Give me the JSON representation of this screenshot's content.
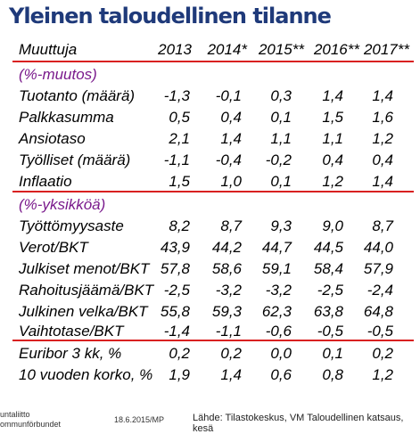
{
  "title": "Yleinen taloudellinen tilanne",
  "header": {
    "label": "Muuttuja",
    "years": [
      "2013",
      "2014*",
      "2015**",
      "2016**",
      "2017**"
    ]
  },
  "section1": {
    "label": "(%-muutos)",
    "rows": [
      {
        "label": "Tuotanto (määrä)",
        "values": [
          "-1,3",
          "-0,1",
          "0,3",
          "1,4",
          "1,4"
        ]
      },
      {
        "label": "Palkkasumma",
        "values": [
          "0,5",
          "0,4",
          "0,1",
          "1,5",
          "1,6"
        ]
      },
      {
        "label": "Ansiotaso",
        "values": [
          "2,1",
          "1,4",
          "1,1",
          "1,1",
          "1,2"
        ]
      },
      {
        "label": "Työlliset (määrä)",
        "values": [
          "-1,1",
          "-0,4",
          "-0,2",
          "0,4",
          "0,4"
        ]
      },
      {
        "label": "Inflaatio",
        "values": [
          "1,5",
          "1,0",
          "0,1",
          "1,2",
          "1,4"
        ]
      }
    ]
  },
  "section2": {
    "label": "(%-yksikköä)",
    "rows": [
      {
        "label": "Työttömyysaste",
        "values": [
          "8,2",
          "8,7",
          "9,3",
          "9,0",
          "8,7"
        ]
      },
      {
        "label": "Verot/BKT",
        "values": [
          "43,9",
          "44,2",
          "44,7",
          "44,5",
          "44,0"
        ]
      },
      {
        "label": "Julkiset menot/BKT",
        "values": [
          "57,8",
          "58,6",
          "59,1",
          "58,4",
          "57,9"
        ]
      },
      {
        "label": "Rahoitusjäämä/BKT",
        "values": [
          "-2,5",
          "-3,2",
          "-3,2",
          "-2,5",
          "-2,4"
        ]
      },
      {
        "label": "Julkinen velka/BKT",
        "values": [
          "55,8",
          "59,3",
          "62,3",
          "63,8",
          "64,8"
        ]
      },
      {
        "label": "Vaihtotase/BKT",
        "values": [
          "-1,4",
          "-1,1",
          "-0,6",
          "-0,5",
          "-0,5"
        ]
      }
    ]
  },
  "section3": {
    "rows": [
      {
        "label": "Euribor 3 kk, %",
        "values": [
          "0,2",
          "0,2",
          "0,0",
          "0,1",
          "0,2"
        ]
      },
      {
        "label": "10 vuoden korko, %",
        "values": [
          "1,9",
          "1,4",
          "0,6",
          "0,8",
          "1,2"
        ]
      }
    ]
  },
  "footer": {
    "logo_line1": "untaliitto",
    "logo_line2": "ommunförbundet",
    "date": "18.6.2015/MP",
    "source": "Lähde: Tilastokeskus, VM Taloudellinen katsaus, kesä"
  },
  "colors": {
    "title": "#1f3a7a",
    "divider": "#d92020",
    "section_label": "#7a1a8c"
  }
}
